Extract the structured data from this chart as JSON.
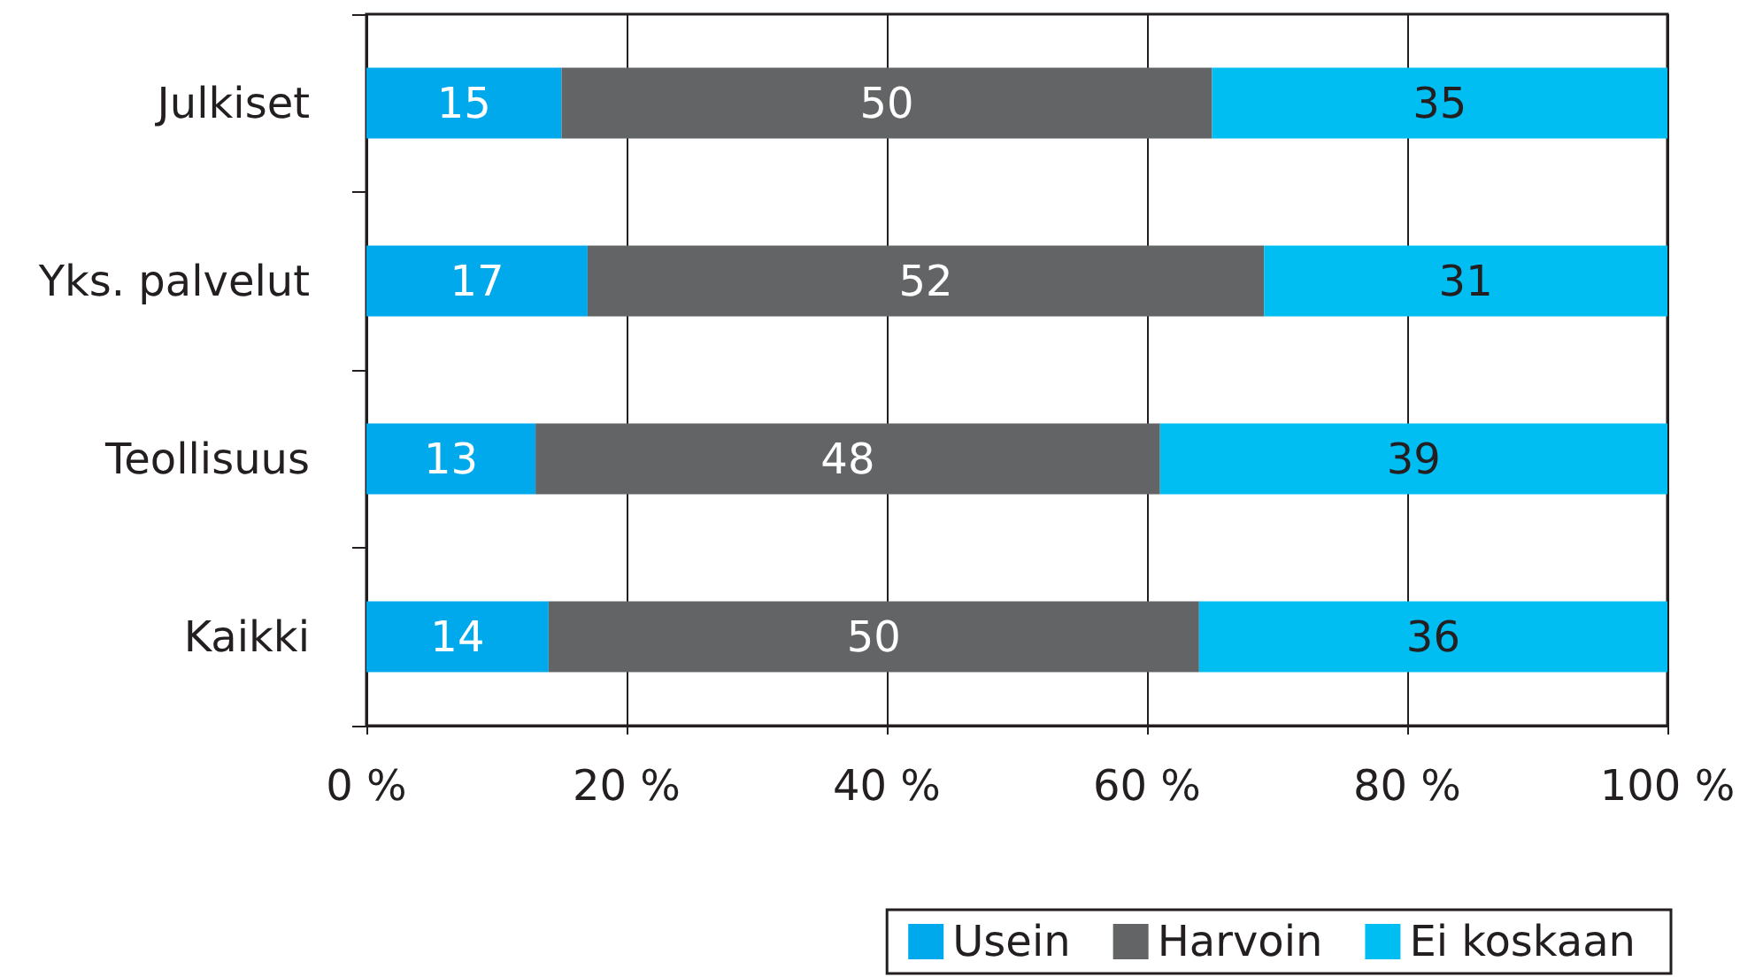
{
  "chart_data": {
    "type": "bar",
    "orientation": "horizontal",
    "stacked": true,
    "data_labels": true,
    "grid": "x",
    "legend": "bottom right",
    "categories": [
      "Julkiset",
      "Yks. palvelut",
      "Teollisuus",
      "Kaikki"
    ],
    "series": [
      {
        "name": "Usein",
        "color": "#00a8ec",
        "values": [
          15,
          17,
          13,
          14
        ]
      },
      {
        "name": "Harvoin",
        "color": "#636466",
        "values": [
          50,
          52,
          48,
          50
        ]
      },
      {
        "name": "Ei koskaan",
        "color": "#00bdf2",
        "values": [
          35,
          31,
          39,
          36
        ]
      }
    ],
    "xlim": [
      0,
      100
    ],
    "xticks": [
      {
        "value": 0,
        "label": "0 %"
      },
      {
        "value": 20,
        "label": "20 %"
      },
      {
        "value": 40,
        "label": "40 %"
      },
      {
        "value": 60,
        "label": "60 %"
      },
      {
        "value": 80,
        "label": "80 %"
      },
      {
        "value": 100,
        "label": "100 %"
      }
    ]
  }
}
